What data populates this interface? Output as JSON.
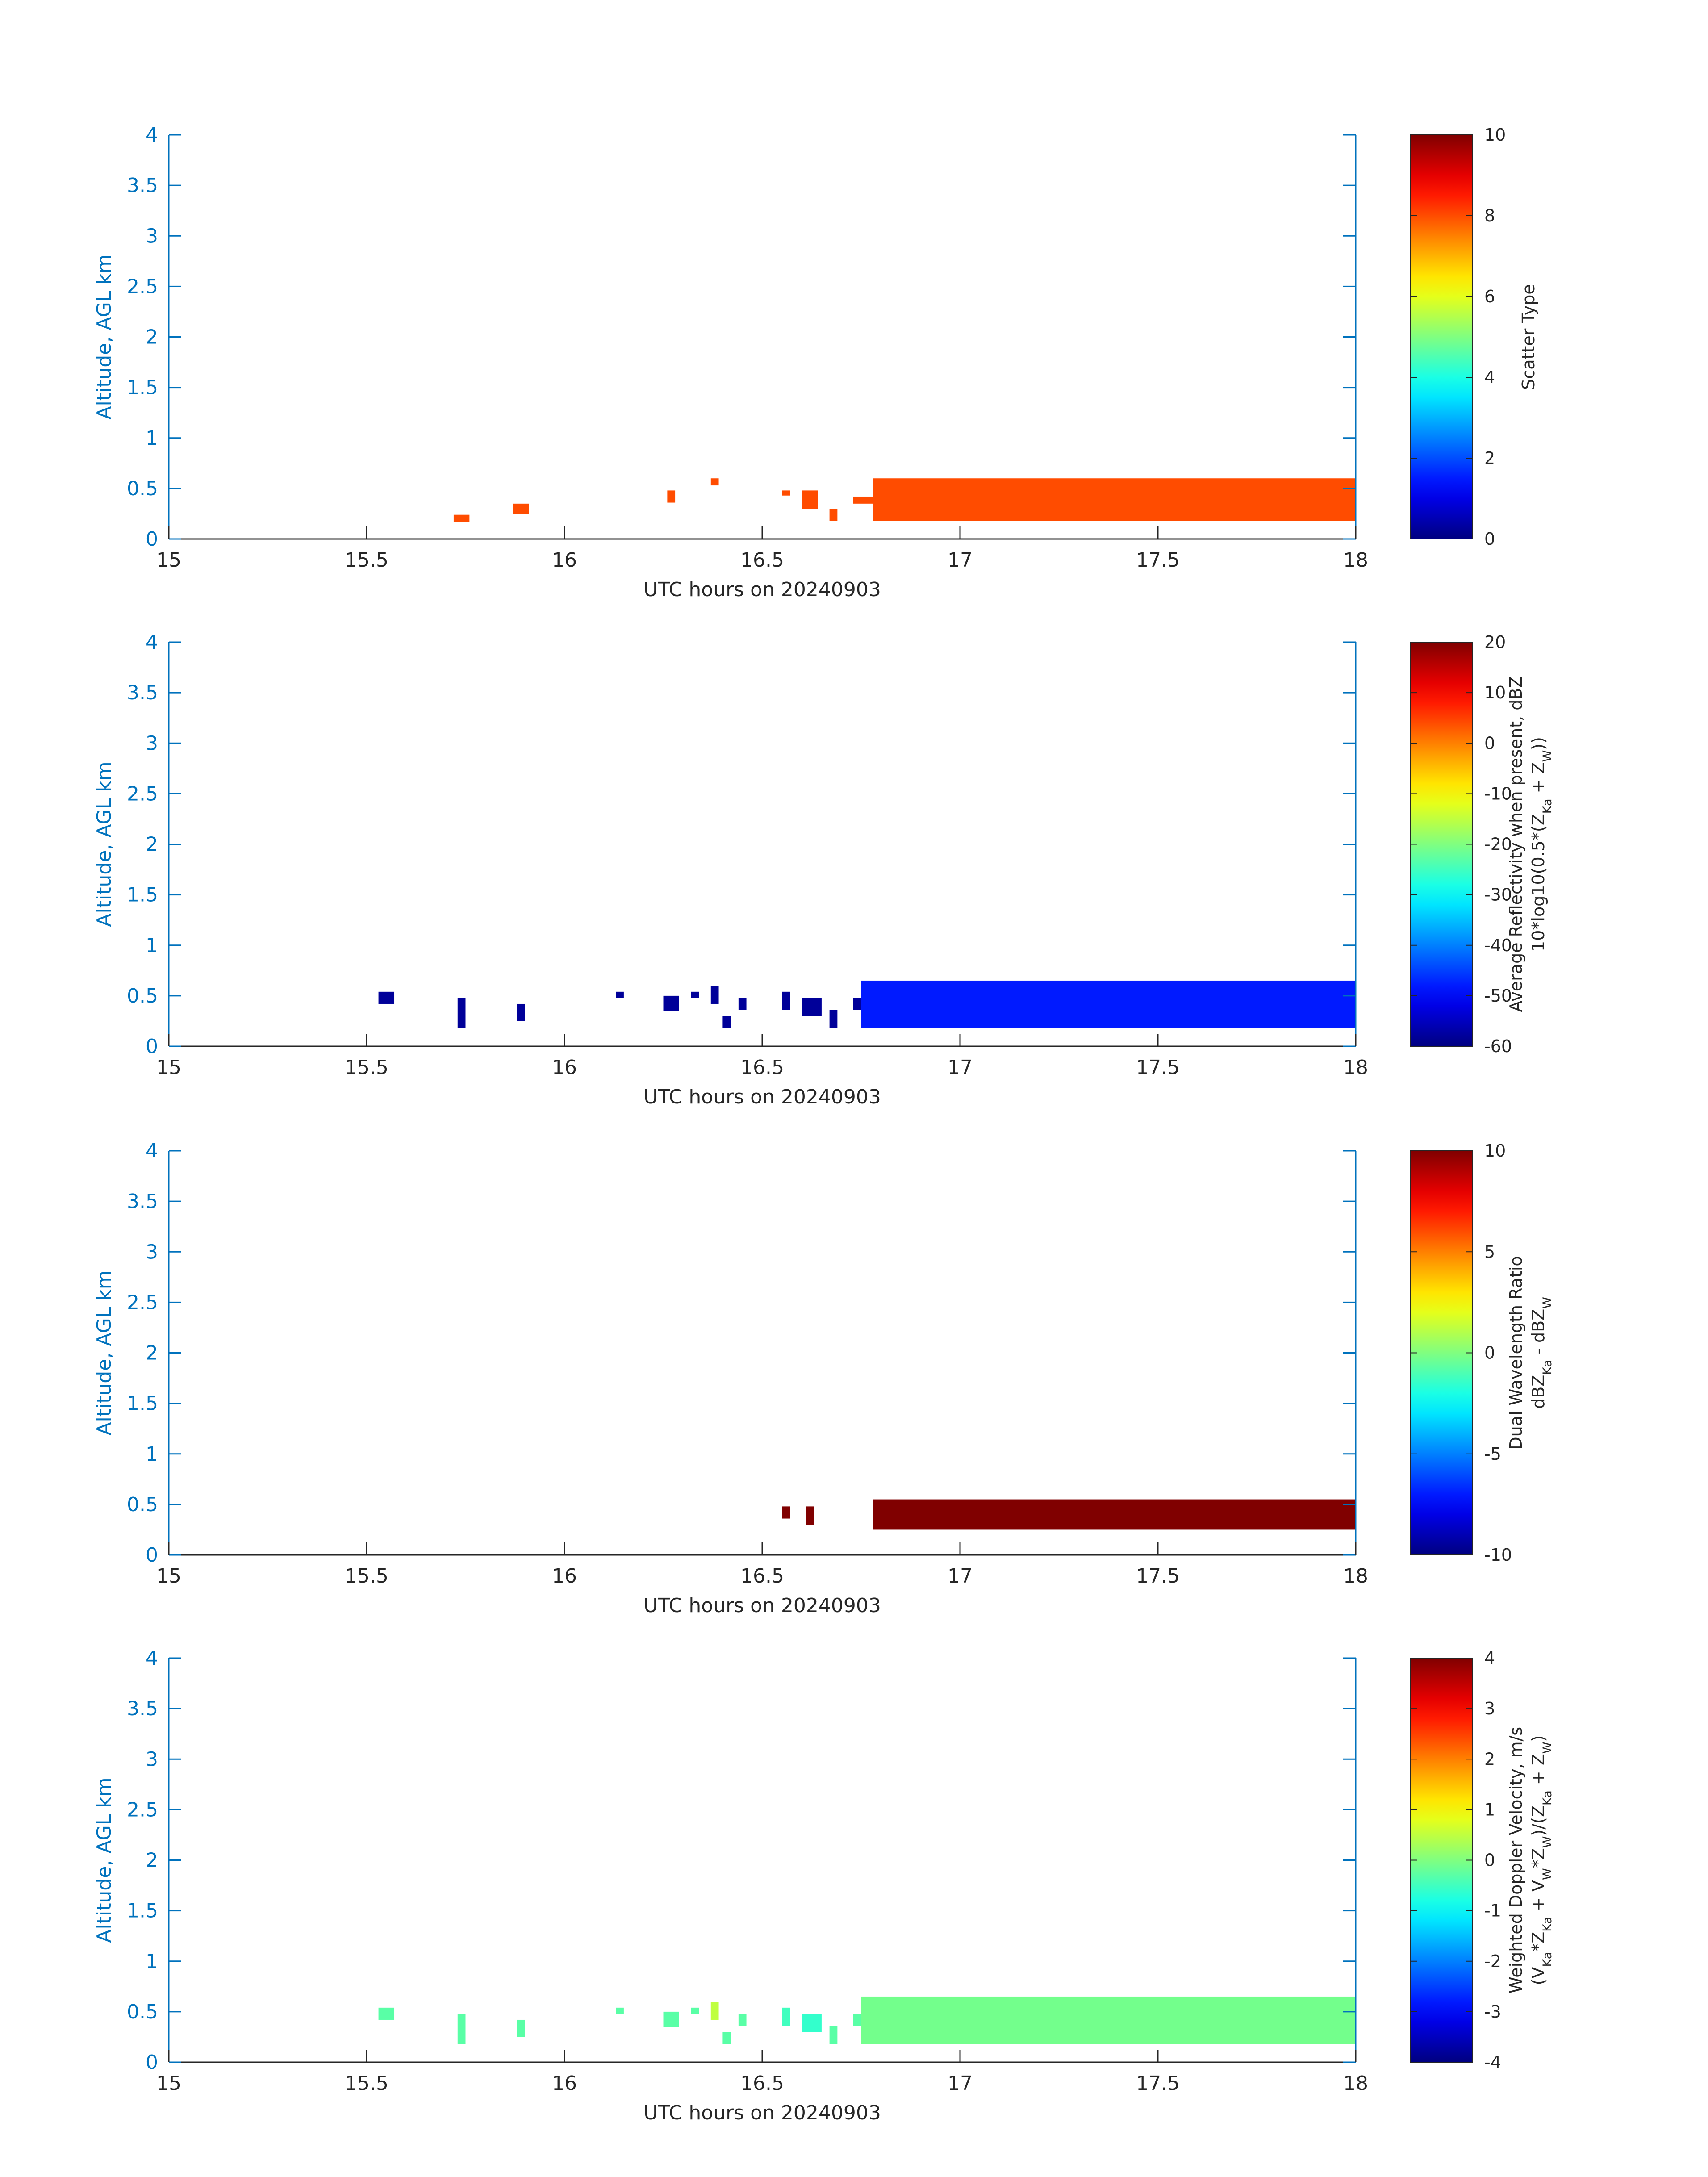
{
  "chart_data": [
    {
      "type": "heatmap",
      "xlabel": "UTC hours on 20240903",
      "ylabel": "Altitude, AGL km",
      "xlim": [
        15,
        18
      ],
      "ylim": [
        0,
        4
      ],
      "xticks": [
        "15",
        "15.5",
        "16",
        "16.5",
        "17",
        "17.5",
        "18"
      ],
      "yticks": [
        "0",
        "0.5",
        "1",
        "1.5",
        "2",
        "2.5",
        "3",
        "3.5",
        "4"
      ],
      "colorbar": {
        "label_lines": [
          "Scatter Type"
        ],
        "clim": [
          0,
          10
        ],
        "ticks": [
          "0",
          "2",
          "4",
          "6",
          "8",
          "10"
        ]
      },
      "regions": [
        {
          "x": [
            15.72,
            15.76
          ],
          "y": [
            0.17,
            0.24
          ],
          "value": 8
        },
        {
          "x": [
            15.87,
            15.91
          ],
          "y": [
            0.25,
            0.35
          ],
          "value": 8
        },
        {
          "x": [
            16.26,
            16.28
          ],
          "y": [
            0.36,
            0.48
          ],
          "value": 8
        },
        {
          "x": [
            16.37,
            16.39
          ],
          "y": [
            0.53,
            0.6
          ],
          "value": 8
        },
        {
          "x": [
            16.55,
            16.57
          ],
          "y": [
            0.43,
            0.48
          ],
          "value": 8
        },
        {
          "x": [
            16.6,
            16.64
          ],
          "y": [
            0.3,
            0.48
          ],
          "value": 8
        },
        {
          "x": [
            16.67,
            16.69
          ],
          "y": [
            0.18,
            0.3
          ],
          "value": 8
        },
        {
          "x": [
            16.73,
            16.78
          ],
          "y": [
            0.35,
            0.42
          ],
          "value": 8
        },
        {
          "x": [
            16.78,
            18.0
          ],
          "y": [
            0.18,
            0.6
          ],
          "value": 8
        }
      ]
    },
    {
      "type": "heatmap",
      "xlabel": "UTC hours on 20240903",
      "ylabel": "Altitude, AGL km",
      "xlim": [
        15,
        18
      ],
      "ylim": [
        0,
        4
      ],
      "xticks": [
        "15",
        "15.5",
        "16",
        "16.5",
        "17",
        "17.5",
        "18"
      ],
      "yticks": [
        "0",
        "0.5",
        "1",
        "1.5",
        "2",
        "2.5",
        "3",
        "3.5",
        "4"
      ],
      "colorbar": {
        "label_lines": [
          "Average Reflectivity when present, dBZ",
          "10*log10(0.5*(Z_Ka + Z_W))"
        ],
        "clim": [
          -60,
          20
        ],
        "ticks": [
          "-60",
          "-50",
          "-40",
          "-30",
          "-20",
          "-10",
          "0",
          "10",
          "20"
        ]
      },
      "regions": [
        {
          "x": [
            15.53,
            15.57
          ],
          "y": [
            0.42,
            0.54
          ],
          "value": -58
        },
        {
          "x": [
            15.73,
            15.75
          ],
          "y": [
            0.18,
            0.48
          ],
          "value": -58
        },
        {
          "x": [
            15.88,
            15.9
          ],
          "y": [
            0.25,
            0.42
          ],
          "value": -58
        },
        {
          "x": [
            16.13,
            16.15
          ],
          "y": [
            0.48,
            0.54
          ],
          "value": -58
        },
        {
          "x": [
            16.25,
            16.29
          ],
          "y": [
            0.35,
            0.5
          ],
          "value": -58
        },
        {
          "x": [
            16.32,
            16.34
          ],
          "y": [
            0.48,
            0.54
          ],
          "value": -58
        },
        {
          "x": [
            16.37,
            16.39
          ],
          "y": [
            0.42,
            0.6
          ],
          "value": -58
        },
        {
          "x": [
            16.4,
            16.42
          ],
          "y": [
            0.18,
            0.3
          ],
          "value": -58
        },
        {
          "x": [
            16.44,
            16.46
          ],
          "y": [
            0.36,
            0.48
          ],
          "value": -58
        },
        {
          "x": [
            16.55,
            16.57
          ],
          "y": [
            0.36,
            0.54
          ],
          "value": -58
        },
        {
          "x": [
            16.6,
            16.65
          ],
          "y": [
            0.3,
            0.48
          ],
          "value": -58
        },
        {
          "x": [
            16.67,
            16.69
          ],
          "y": [
            0.18,
            0.36
          ],
          "value": -58
        },
        {
          "x": [
            16.73,
            16.75
          ],
          "y": [
            0.36,
            0.48
          ],
          "value": -58
        },
        {
          "x": [
            16.75,
            18.0
          ],
          "y": [
            0.18,
            0.65
          ],
          "value": -48
        }
      ]
    },
    {
      "type": "heatmap",
      "xlabel": "UTC hours on 20240903",
      "ylabel": "Altitude, AGL km",
      "xlim": [
        15,
        18
      ],
      "ylim": [
        0,
        4
      ],
      "xticks": [
        "15",
        "15.5",
        "16",
        "16.5",
        "17",
        "17.5",
        "18"
      ],
      "yticks": [
        "0",
        "0.5",
        "1",
        "1.5",
        "2",
        "2.5",
        "3",
        "3.5",
        "4"
      ],
      "colorbar": {
        "label_lines": [
          "Dual Wavelength Ratio",
          "dBZ_Ka - dBZ_W"
        ],
        "clim": [
          -10,
          10
        ],
        "ticks": [
          "-10",
          "-5",
          "0",
          "5",
          "10"
        ]
      },
      "regions": [
        {
          "x": [
            16.55,
            16.57
          ],
          "y": [
            0.36,
            0.48
          ],
          "value": 10
        },
        {
          "x": [
            16.61,
            16.63
          ],
          "y": [
            0.3,
            0.48
          ],
          "value": 10
        },
        {
          "x": [
            16.78,
            18.0
          ],
          "y": [
            0.25,
            0.55
          ],
          "value": 10
        }
      ]
    },
    {
      "type": "heatmap",
      "xlabel": "UTC hours on 20240903",
      "ylabel": "Altitude, AGL km",
      "xlim": [
        15,
        18
      ],
      "ylim": [
        0,
        4
      ],
      "xticks": [
        "15",
        "15.5",
        "16",
        "16.5",
        "17",
        "17.5",
        "18"
      ],
      "yticks": [
        "0",
        "0.5",
        "1",
        "1.5",
        "2",
        "2.5",
        "3",
        "3.5",
        "4"
      ],
      "colorbar": {
        "label_lines": [
          "Weighted Doppler Velocity, m/s",
          "(V_Ka*Z_Ka + V_W*Z_W)/(Z_Ka + Z_W)"
        ],
        "clim": [
          -4,
          4
        ],
        "ticks": [
          "-4",
          "-3",
          "-2",
          "-1",
          "0",
          "1",
          "2",
          "3",
          "4"
        ]
      },
      "regions": [
        {
          "x": [
            15.53,
            15.57
          ],
          "y": [
            0.42,
            0.54
          ],
          "value": -0.3
        },
        {
          "x": [
            15.73,
            15.75
          ],
          "y": [
            0.18,
            0.48
          ],
          "value": -0.3
        },
        {
          "x": [
            15.88,
            15.9
          ],
          "y": [
            0.25,
            0.42
          ],
          "value": -0.3
        },
        {
          "x": [
            16.13,
            16.15
          ],
          "y": [
            0.48,
            0.54
          ],
          "value": -0.3
        },
        {
          "x": [
            16.25,
            16.29
          ],
          "y": [
            0.35,
            0.5
          ],
          "value": -0.3
        },
        {
          "x": [
            16.32,
            16.34
          ],
          "y": [
            0.48,
            0.54
          ],
          "value": -0.3
        },
        {
          "x": [
            16.37,
            16.39
          ],
          "y": [
            0.42,
            0.6
          ],
          "value": 0.5
        },
        {
          "x": [
            16.4,
            16.42
          ],
          "y": [
            0.18,
            0.3
          ],
          "value": -0.3
        },
        {
          "x": [
            16.44,
            16.46
          ],
          "y": [
            0.36,
            0.48
          ],
          "value": -0.3
        },
        {
          "x": [
            16.55,
            16.57
          ],
          "y": [
            0.36,
            0.54
          ],
          "value": -0.5
        },
        {
          "x": [
            16.6,
            16.65
          ],
          "y": [
            0.3,
            0.48
          ],
          "value": -0.6
        },
        {
          "x": [
            16.67,
            16.69
          ],
          "y": [
            0.18,
            0.36
          ],
          "value": -0.3
        },
        {
          "x": [
            16.73,
            16.75
          ],
          "y": [
            0.36,
            0.48
          ],
          "value": -0.3
        },
        {
          "x": [
            16.75,
            18.0
          ],
          "y": [
            0.18,
            0.65
          ],
          "value": -0.1
        }
      ]
    }
  ]
}
